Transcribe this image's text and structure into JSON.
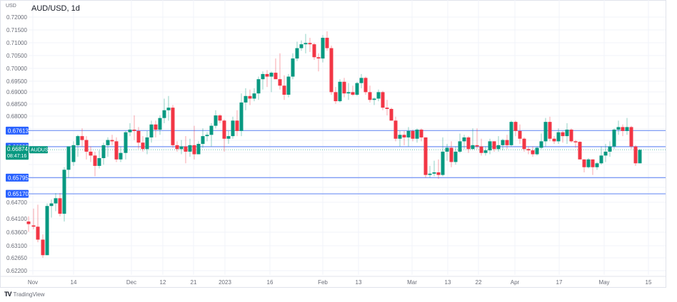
{
  "header": {
    "title": "AUD/USD, 1d",
    "currency": "USD"
  },
  "footer": {
    "brand": "TradingView",
    "logo_glyph": "TV"
  },
  "colors": {
    "up": "#089981",
    "down": "#f23645",
    "level_line": "#2962ff",
    "level_line_soft": "#7e9cf5",
    "grid": "#f0f3fa",
    "text": "#6a6d78"
  },
  "price_badge": {
    "price": "0.66874",
    "symbol": "AUDUSD",
    "countdown": "08:47:16"
  },
  "levels": [
    {
      "label": "0.67613",
      "price": 0.67613
    },
    {
      "label": "0.66992",
      "price": 0.66992
    },
    {
      "label": "0.65795",
      "price": 0.65795
    },
    {
      "label": "0.65170",
      "price": 0.6517
    }
  ],
  "y_axis": {
    "ticks": [
      {
        "label": "0.72000",
        "y": 24
      },
      {
        "label": "0.71500",
        "y": 42
      },
      {
        "label": "0.71000",
        "y": 60
      },
      {
        "label": "0.70500",
        "y": 78
      },
      {
        "label": "0.70000",
        "y": 96
      },
      {
        "label": "0.69500",
        "y": 114
      },
      {
        "label": "0.69000",
        "y": 129
      },
      {
        "label": "0.68500",
        "y": 146
      },
      {
        "label": "0.68000",
        "y": 163
      },
      {
        "label": "0.64700",
        "y": 284
      },
      {
        "label": "0.64100",
        "y": 307
      },
      {
        "label": "0.63600",
        "y": 326
      },
      {
        "label": "0.63100",
        "y": 345
      },
      {
        "label": "0.62650",
        "y": 362
      },
      {
        "label": "0.62200",
        "y": 380
      }
    ]
  },
  "x_axis": {
    "ticks": [
      {
        "label": "Nov",
        "x": 46
      },
      {
        "label": "14",
        "x": 103
      },
      {
        "label": "Dec",
        "x": 184
      },
      {
        "label": "12",
        "x": 228
      },
      {
        "label": "21",
        "x": 271
      },
      {
        "label": "2023",
        "x": 315
      },
      {
        "label": "16",
        "x": 378
      },
      {
        "label": "Feb",
        "x": 452
      },
      {
        "label": "13",
        "x": 502
      },
      {
        "label": "Mar",
        "x": 577
      },
      {
        "label": "13",
        "x": 627
      },
      {
        "label": "22",
        "x": 670
      },
      {
        "label": "Apr",
        "x": 721
      },
      {
        "label": "17",
        "x": 783
      },
      {
        "label": "May",
        "x": 846
      },
      {
        "label": "15",
        "x": 908
      }
    ]
  },
  "chart_data": {
    "type": "candlestick",
    "title": "AUD/USD, 1d",
    "xlabel": "",
    "ylabel": "USD",
    "ylim": [
      0.6195,
      0.7215
    ],
    "grid": true,
    "horizontal_levels": [
      0.67613,
      0.66992,
      0.65795,
      0.6517
    ],
    "last_price": 0.66874,
    "candles": [
      {
        "x": 40,
        "o": 0.641,
        "h": 0.643,
        "l": 0.637,
        "c": 0.64
      },
      {
        "x": 47,
        "o": 0.6395,
        "h": 0.646,
        "l": 0.638,
        "c": 0.639
      },
      {
        "x": 53,
        "o": 0.639,
        "h": 0.6475,
        "l": 0.633,
        "c": 0.634
      },
      {
        "x": 60,
        "o": 0.634,
        "h": 0.636,
        "l": 0.627,
        "c": 0.628
      },
      {
        "x": 66,
        "o": 0.628,
        "h": 0.648,
        "l": 0.628,
        "c": 0.647
      },
      {
        "x": 72,
        "o": 0.647,
        "h": 0.6495,
        "l": 0.6425,
        "c": 0.648
      },
      {
        "x": 78,
        "o": 0.648,
        "h": 0.652,
        "l": 0.645,
        "c": 0.65
      },
      {
        "x": 84,
        "o": 0.65,
        "h": 0.652,
        "l": 0.643,
        "c": 0.644
      },
      {
        "x": 90,
        "o": 0.644,
        "h": 0.662,
        "l": 0.641,
        "c": 0.661
      },
      {
        "x": 96,
        "o": 0.661,
        "h": 0.669,
        "l": 0.658,
        "c": 0.67
      },
      {
        "x": 103,
        "o": 0.664,
        "h": 0.672,
        "l": 0.6625,
        "c": 0.6705
      },
      {
        "x": 109,
        "o": 0.6705,
        "h": 0.6745,
        "l": 0.666,
        "c": 0.674
      },
      {
        "x": 115,
        "o": 0.674,
        "h": 0.677,
        "l": 0.67,
        "c": 0.6725
      },
      {
        "x": 121,
        "o": 0.6725,
        "h": 0.674,
        "l": 0.665,
        "c": 0.668
      },
      {
        "x": 127,
        "o": 0.668,
        "h": 0.67,
        "l": 0.664,
        "c": 0.6665
      },
      {
        "x": 133,
        "o": 0.6665,
        "h": 0.668,
        "l": 0.6585,
        "c": 0.6625
      },
      {
        "x": 139,
        "o": 0.6625,
        "h": 0.6685,
        "l": 0.6615,
        "c": 0.6655
      },
      {
        "x": 145,
        "o": 0.6655,
        "h": 0.6715,
        "l": 0.663,
        "c": 0.6705
      },
      {
        "x": 151,
        "o": 0.6705,
        "h": 0.6735,
        "l": 0.666,
        "c": 0.6725
      },
      {
        "x": 157,
        "o": 0.6725,
        "h": 0.6745,
        "l": 0.6705,
        "c": 0.672
      },
      {
        "x": 163,
        "o": 0.672,
        "h": 0.6735,
        "l": 0.664,
        "c": 0.665
      },
      {
        "x": 169,
        "o": 0.665,
        "h": 0.67,
        "l": 0.664,
        "c": 0.6675
      },
      {
        "x": 176,
        "o": 0.6675,
        "h": 0.676,
        "l": 0.665,
        "c": 0.6755
      },
      {
        "x": 182,
        "o": 0.6755,
        "h": 0.679,
        "l": 0.674,
        "c": 0.6765
      },
      {
        "x": 188,
        "o": 0.6765,
        "h": 0.682,
        "l": 0.6725,
        "c": 0.676
      },
      {
        "x": 194,
        "o": 0.676,
        "h": 0.6775,
        "l": 0.669,
        "c": 0.6715
      },
      {
        "x": 200,
        "o": 0.6715,
        "h": 0.674,
        "l": 0.668,
        "c": 0.669
      },
      {
        "x": 206,
        "o": 0.669,
        "h": 0.676,
        "l": 0.667,
        "c": 0.6735
      },
      {
        "x": 212,
        "o": 0.6735,
        "h": 0.68,
        "l": 0.6715,
        "c": 0.6785
      },
      {
        "x": 218,
        "o": 0.6785,
        "h": 0.68,
        "l": 0.6735,
        "c": 0.6765
      },
      {
        "x": 224,
        "o": 0.6765,
        "h": 0.682,
        "l": 0.6745,
        "c": 0.681
      },
      {
        "x": 230,
        "o": 0.681,
        "h": 0.6885,
        "l": 0.679,
        "c": 0.684
      },
      {
        "x": 236,
        "o": 0.684,
        "h": 0.6895,
        "l": 0.68,
        "c": 0.685
      },
      {
        "x": 242,
        "o": 0.685,
        "h": 0.686,
        "l": 0.6695,
        "c": 0.6705
      },
      {
        "x": 248,
        "o": 0.6705,
        "h": 0.672,
        "l": 0.668,
        "c": 0.669
      },
      {
        "x": 254,
        "o": 0.669,
        "h": 0.6725,
        "l": 0.667,
        "c": 0.67
      },
      {
        "x": 260,
        "o": 0.67,
        "h": 0.674,
        "l": 0.6635,
        "c": 0.668
      },
      {
        "x": 266,
        "o": 0.668,
        "h": 0.673,
        "l": 0.666,
        "c": 0.6705
      },
      {
        "x": 272,
        "o": 0.6705,
        "h": 0.678,
        "l": 0.665,
        "c": 0.667
      },
      {
        "x": 278,
        "o": 0.667,
        "h": 0.672,
        "l": 0.667,
        "c": 0.671
      },
      {
        "x": 284,
        "o": 0.671,
        "h": 0.677,
        "l": 0.6695,
        "c": 0.674
      },
      {
        "x": 290,
        "o": 0.674,
        "h": 0.6755,
        "l": 0.672,
        "c": 0.6745
      },
      {
        "x": 296,
        "o": 0.6745,
        "h": 0.679,
        "l": 0.67,
        "c": 0.678
      },
      {
        "x": 302,
        "o": 0.678,
        "h": 0.684,
        "l": 0.677,
        "c": 0.682
      },
      {
        "x": 308,
        "o": 0.682,
        "h": 0.6825,
        "l": 0.679,
        "c": 0.68
      },
      {
        "x": 314,
        "o": 0.68,
        "h": 0.6805,
        "l": 0.668,
        "c": 0.673
      },
      {
        "x": 320,
        "o": 0.673,
        "h": 0.676,
        "l": 0.671,
        "c": 0.674
      },
      {
        "x": 326,
        "o": 0.674,
        "h": 0.6815,
        "l": 0.673,
        "c": 0.68
      },
      {
        "x": 332,
        "o": 0.68,
        "h": 0.684,
        "l": 0.674,
        "c": 0.676
      },
      {
        "x": 338,
        "o": 0.676,
        "h": 0.6905,
        "l": 0.674,
        "c": 0.687
      },
      {
        "x": 344,
        "o": 0.687,
        "h": 0.6925,
        "l": 0.684,
        "c": 0.6895
      },
      {
        "x": 350,
        "o": 0.6895,
        "h": 0.692,
        "l": 0.686,
        "c": 0.6885
      },
      {
        "x": 356,
        "o": 0.6885,
        "h": 0.6925,
        "l": 0.6875,
        "c": 0.6905
      },
      {
        "x": 362,
        "o": 0.6905,
        "h": 0.697,
        "l": 0.688,
        "c": 0.696
      },
      {
        "x": 368,
        "o": 0.696,
        "h": 0.699,
        "l": 0.692,
        "c": 0.698
      },
      {
        "x": 374,
        "o": 0.698,
        "h": 0.6995,
        "l": 0.693,
        "c": 0.697
      },
      {
        "x": 380,
        "o": 0.697,
        "h": 0.699,
        "l": 0.691,
        "c": 0.6985
      },
      {
        "x": 386,
        "o": 0.6985,
        "h": 0.704,
        "l": 0.6975,
        "c": 0.696
      },
      {
        "x": 392,
        "o": 0.696,
        "h": 0.706,
        "l": 0.692,
        "c": 0.6935
      },
      {
        "x": 398,
        "o": 0.6935,
        "h": 0.6975,
        "l": 0.688,
        "c": 0.69
      },
      {
        "x": 404,
        "o": 0.69,
        "h": 0.698,
        "l": 0.689,
        "c": 0.697
      },
      {
        "x": 410,
        "o": 0.697,
        "h": 0.706,
        "l": 0.696,
        "c": 0.704
      },
      {
        "x": 416,
        "o": 0.704,
        "h": 0.7105,
        "l": 0.703,
        "c": 0.708
      },
      {
        "x": 422,
        "o": 0.708,
        "h": 0.711,
        "l": 0.707,
        "c": 0.7095
      },
      {
        "x": 428,
        "o": 0.7095,
        "h": 0.7135,
        "l": 0.706,
        "c": 0.71
      },
      {
        "x": 434,
        "o": 0.71,
        "h": 0.712,
        "l": 0.7065,
        "c": 0.7095
      },
      {
        "x": 440,
        "o": 0.7095,
        "h": 0.71,
        "l": 0.7035,
        "c": 0.7045
      },
      {
        "x": 446,
        "o": 0.7045,
        "h": 0.706,
        "l": 0.699,
        "c": 0.704
      },
      {
        "x": 452,
        "o": 0.704,
        "h": 0.713,
        "l": 0.7025,
        "c": 0.712
      },
      {
        "x": 458,
        "o": 0.712,
        "h": 0.7145,
        "l": 0.707,
        "c": 0.708
      },
      {
        "x": 464,
        "o": 0.708,
        "h": 0.709,
        "l": 0.69,
        "c": 0.691
      },
      {
        "x": 470,
        "o": 0.691,
        "h": 0.693,
        "l": 0.6865,
        "c": 0.6875
      },
      {
        "x": 476,
        "o": 0.6875,
        "h": 0.696,
        "l": 0.687,
        "c": 0.695
      },
      {
        "x": 482,
        "o": 0.695,
        "h": 0.6965,
        "l": 0.689,
        "c": 0.6905
      },
      {
        "x": 488,
        "o": 0.6905,
        "h": 0.6945,
        "l": 0.688,
        "c": 0.691
      },
      {
        "x": 494,
        "o": 0.691,
        "h": 0.6935,
        "l": 0.6895,
        "c": 0.69
      },
      {
        "x": 500,
        "o": 0.69,
        "h": 0.695,
        "l": 0.6895,
        "c": 0.6945
      },
      {
        "x": 506,
        "o": 0.6945,
        "h": 0.698,
        "l": 0.6925,
        "c": 0.6965
      },
      {
        "x": 512,
        "o": 0.6965,
        "h": 0.697,
        "l": 0.69,
        "c": 0.691
      },
      {
        "x": 518,
        "o": 0.691,
        "h": 0.6935,
        "l": 0.687,
        "c": 0.688
      },
      {
        "x": 524,
        "o": 0.688,
        "h": 0.689,
        "l": 0.686,
        "c": 0.6885
      },
      {
        "x": 530,
        "o": 0.6885,
        "h": 0.692,
        "l": 0.6875,
        "c": 0.691
      },
      {
        "x": 536,
        "o": 0.691,
        "h": 0.6915,
        "l": 0.684,
        "c": 0.685
      },
      {
        "x": 542,
        "o": 0.685,
        "h": 0.688,
        "l": 0.682,
        "c": 0.6845
      },
      {
        "x": 548,
        "o": 0.6845,
        "h": 0.685,
        "l": 0.68,
        "c": 0.68
      },
      {
        "x": 554,
        "o": 0.68,
        "h": 0.6815,
        "l": 0.672,
        "c": 0.673
      },
      {
        "x": 560,
        "o": 0.673,
        "h": 0.676,
        "l": 0.67,
        "c": 0.6745
      },
      {
        "x": 566,
        "o": 0.6745,
        "h": 0.676,
        "l": 0.6705,
        "c": 0.6735
      },
      {
        "x": 572,
        "o": 0.6735,
        "h": 0.6775,
        "l": 0.67,
        "c": 0.676
      },
      {
        "x": 578,
        "o": 0.676,
        "h": 0.6765,
        "l": 0.672,
        "c": 0.673
      },
      {
        "x": 584,
        "o": 0.673,
        "h": 0.677,
        "l": 0.6715,
        "c": 0.6765
      },
      {
        "x": 590,
        "o": 0.6765,
        "h": 0.677,
        "l": 0.672,
        "c": 0.6735
      },
      {
        "x": 596,
        "o": 0.6735,
        "h": 0.6735,
        "l": 0.658,
        "c": 0.659
      },
      {
        "x": 602,
        "o": 0.659,
        "h": 0.6625,
        "l": 0.658,
        "c": 0.6595
      },
      {
        "x": 608,
        "o": 0.6595,
        "h": 0.6645,
        "l": 0.6585,
        "c": 0.66
      },
      {
        "x": 614,
        "o": 0.66,
        "h": 0.665,
        "l": 0.6575,
        "c": 0.659
      },
      {
        "x": 620,
        "o": 0.659,
        "h": 0.6735,
        "l": 0.6585,
        "c": 0.668
      },
      {
        "x": 626,
        "o": 0.668,
        "h": 0.671,
        "l": 0.6645,
        "c": 0.6695
      },
      {
        "x": 632,
        "o": 0.6695,
        "h": 0.672,
        "l": 0.662,
        "c": 0.664
      },
      {
        "x": 638,
        "o": 0.664,
        "h": 0.67,
        "l": 0.663,
        "c": 0.668
      },
      {
        "x": 644,
        "o": 0.668,
        "h": 0.675,
        "l": 0.6675,
        "c": 0.672
      },
      {
        "x": 650,
        "o": 0.672,
        "h": 0.6745,
        "l": 0.669,
        "c": 0.6735
      },
      {
        "x": 656,
        "o": 0.6735,
        "h": 0.674,
        "l": 0.6675,
        "c": 0.669
      },
      {
        "x": 662,
        "o": 0.669,
        "h": 0.677,
        "l": 0.669,
        "c": 0.6705
      },
      {
        "x": 668,
        "o": 0.6705,
        "h": 0.677,
        "l": 0.669,
        "c": 0.67
      },
      {
        "x": 674,
        "o": 0.67,
        "h": 0.673,
        "l": 0.6665,
        "c": 0.6675
      },
      {
        "x": 680,
        "o": 0.6675,
        "h": 0.67,
        "l": 0.6665,
        "c": 0.6685
      },
      {
        "x": 686,
        "o": 0.6685,
        "h": 0.673,
        "l": 0.667,
        "c": 0.672
      },
      {
        "x": 692,
        "o": 0.672,
        "h": 0.672,
        "l": 0.668,
        "c": 0.669
      },
      {
        "x": 698,
        "o": 0.669,
        "h": 0.674,
        "l": 0.668,
        "c": 0.6705
      },
      {
        "x": 704,
        "o": 0.6705,
        "h": 0.673,
        "l": 0.6685,
        "c": 0.6725
      },
      {
        "x": 710,
        "o": 0.6725,
        "h": 0.6745,
        "l": 0.669,
        "c": 0.6705
      },
      {
        "x": 716,
        "o": 0.6705,
        "h": 0.68,
        "l": 0.67,
        "c": 0.6795
      },
      {
        "x": 722,
        "o": 0.6795,
        "h": 0.68,
        "l": 0.674,
        "c": 0.676
      },
      {
        "x": 728,
        "o": 0.676,
        "h": 0.6785,
        "l": 0.671,
        "c": 0.673
      },
      {
        "x": 734,
        "o": 0.673,
        "h": 0.6735,
        "l": 0.668,
        "c": 0.669
      },
      {
        "x": 740,
        "o": 0.669,
        "h": 0.67,
        "l": 0.667,
        "c": 0.6685
      },
      {
        "x": 746,
        "o": 0.6685,
        "h": 0.67,
        "l": 0.666,
        "c": 0.667
      },
      {
        "x": 752,
        "o": 0.667,
        "h": 0.67,
        "l": 0.6665,
        "c": 0.6695
      },
      {
        "x": 758,
        "o": 0.6695,
        "h": 0.675,
        "l": 0.669,
        "c": 0.672
      },
      {
        "x": 764,
        "o": 0.672,
        "h": 0.681,
        "l": 0.67,
        "c": 0.6795
      },
      {
        "x": 770,
        "o": 0.6795,
        "h": 0.6815,
        "l": 0.672,
        "c": 0.673
      },
      {
        "x": 776,
        "o": 0.673,
        "h": 0.674,
        "l": 0.671,
        "c": 0.672
      },
      {
        "x": 782,
        "o": 0.672,
        "h": 0.677,
        "l": 0.671,
        "c": 0.6755
      },
      {
        "x": 788,
        "o": 0.6755,
        "h": 0.676,
        "l": 0.6715,
        "c": 0.674
      },
      {
        "x": 794,
        "o": 0.674,
        "h": 0.679,
        "l": 0.671,
        "c": 0.6765
      },
      {
        "x": 800,
        "o": 0.6765,
        "h": 0.677,
        "l": 0.6715,
        "c": 0.672
      },
      {
        "x": 806,
        "o": 0.672,
        "h": 0.6725,
        "l": 0.6695,
        "c": 0.6718
      },
      {
        "x": 812,
        "o": 0.6718,
        "h": 0.672,
        "l": 0.665,
        "c": 0.665
      },
      {
        "x": 818,
        "o": 0.665,
        "h": 0.665,
        "l": 0.66,
        "c": 0.662
      },
      {
        "x": 824,
        "o": 0.662,
        "h": 0.6655,
        "l": 0.6615,
        "c": 0.665
      },
      {
        "x": 830,
        "o": 0.665,
        "h": 0.665,
        "l": 0.659,
        "c": 0.662
      },
      {
        "x": 836,
        "o": 0.662,
        "h": 0.664,
        "l": 0.661,
        "c": 0.6635
      },
      {
        "x": 842,
        "o": 0.6635,
        "h": 0.67,
        "l": 0.663,
        "c": 0.6665
      },
      {
        "x": 848,
        "o": 0.6665,
        "h": 0.671,
        "l": 0.664,
        "c": 0.668
      },
      {
        "x": 854,
        "o": 0.668,
        "h": 0.672,
        "l": 0.666,
        "c": 0.67
      },
      {
        "x": 860,
        "o": 0.67,
        "h": 0.677,
        "l": 0.669,
        "c": 0.6765
      },
      {
        "x": 866,
        "o": 0.6765,
        "h": 0.68,
        "l": 0.6745,
        "c": 0.6775
      },
      {
        "x": 872,
        "o": 0.6775,
        "h": 0.6785,
        "l": 0.674,
        "c": 0.676
      },
      {
        "x": 878,
        "o": 0.676,
        "h": 0.681,
        "l": 0.6745,
        "c": 0.6775
      },
      {
        "x": 884,
        "o": 0.6775,
        "h": 0.678,
        "l": 0.669,
        "c": 0.67
      },
      {
        "x": 890,
        "o": 0.67,
        "h": 0.6705,
        "l": 0.6625,
        "c": 0.6635
      },
      {
        "x": 896,
        "o": 0.6635,
        "h": 0.669,
        "l": 0.6635,
        "c": 0.6687
      }
    ]
  }
}
